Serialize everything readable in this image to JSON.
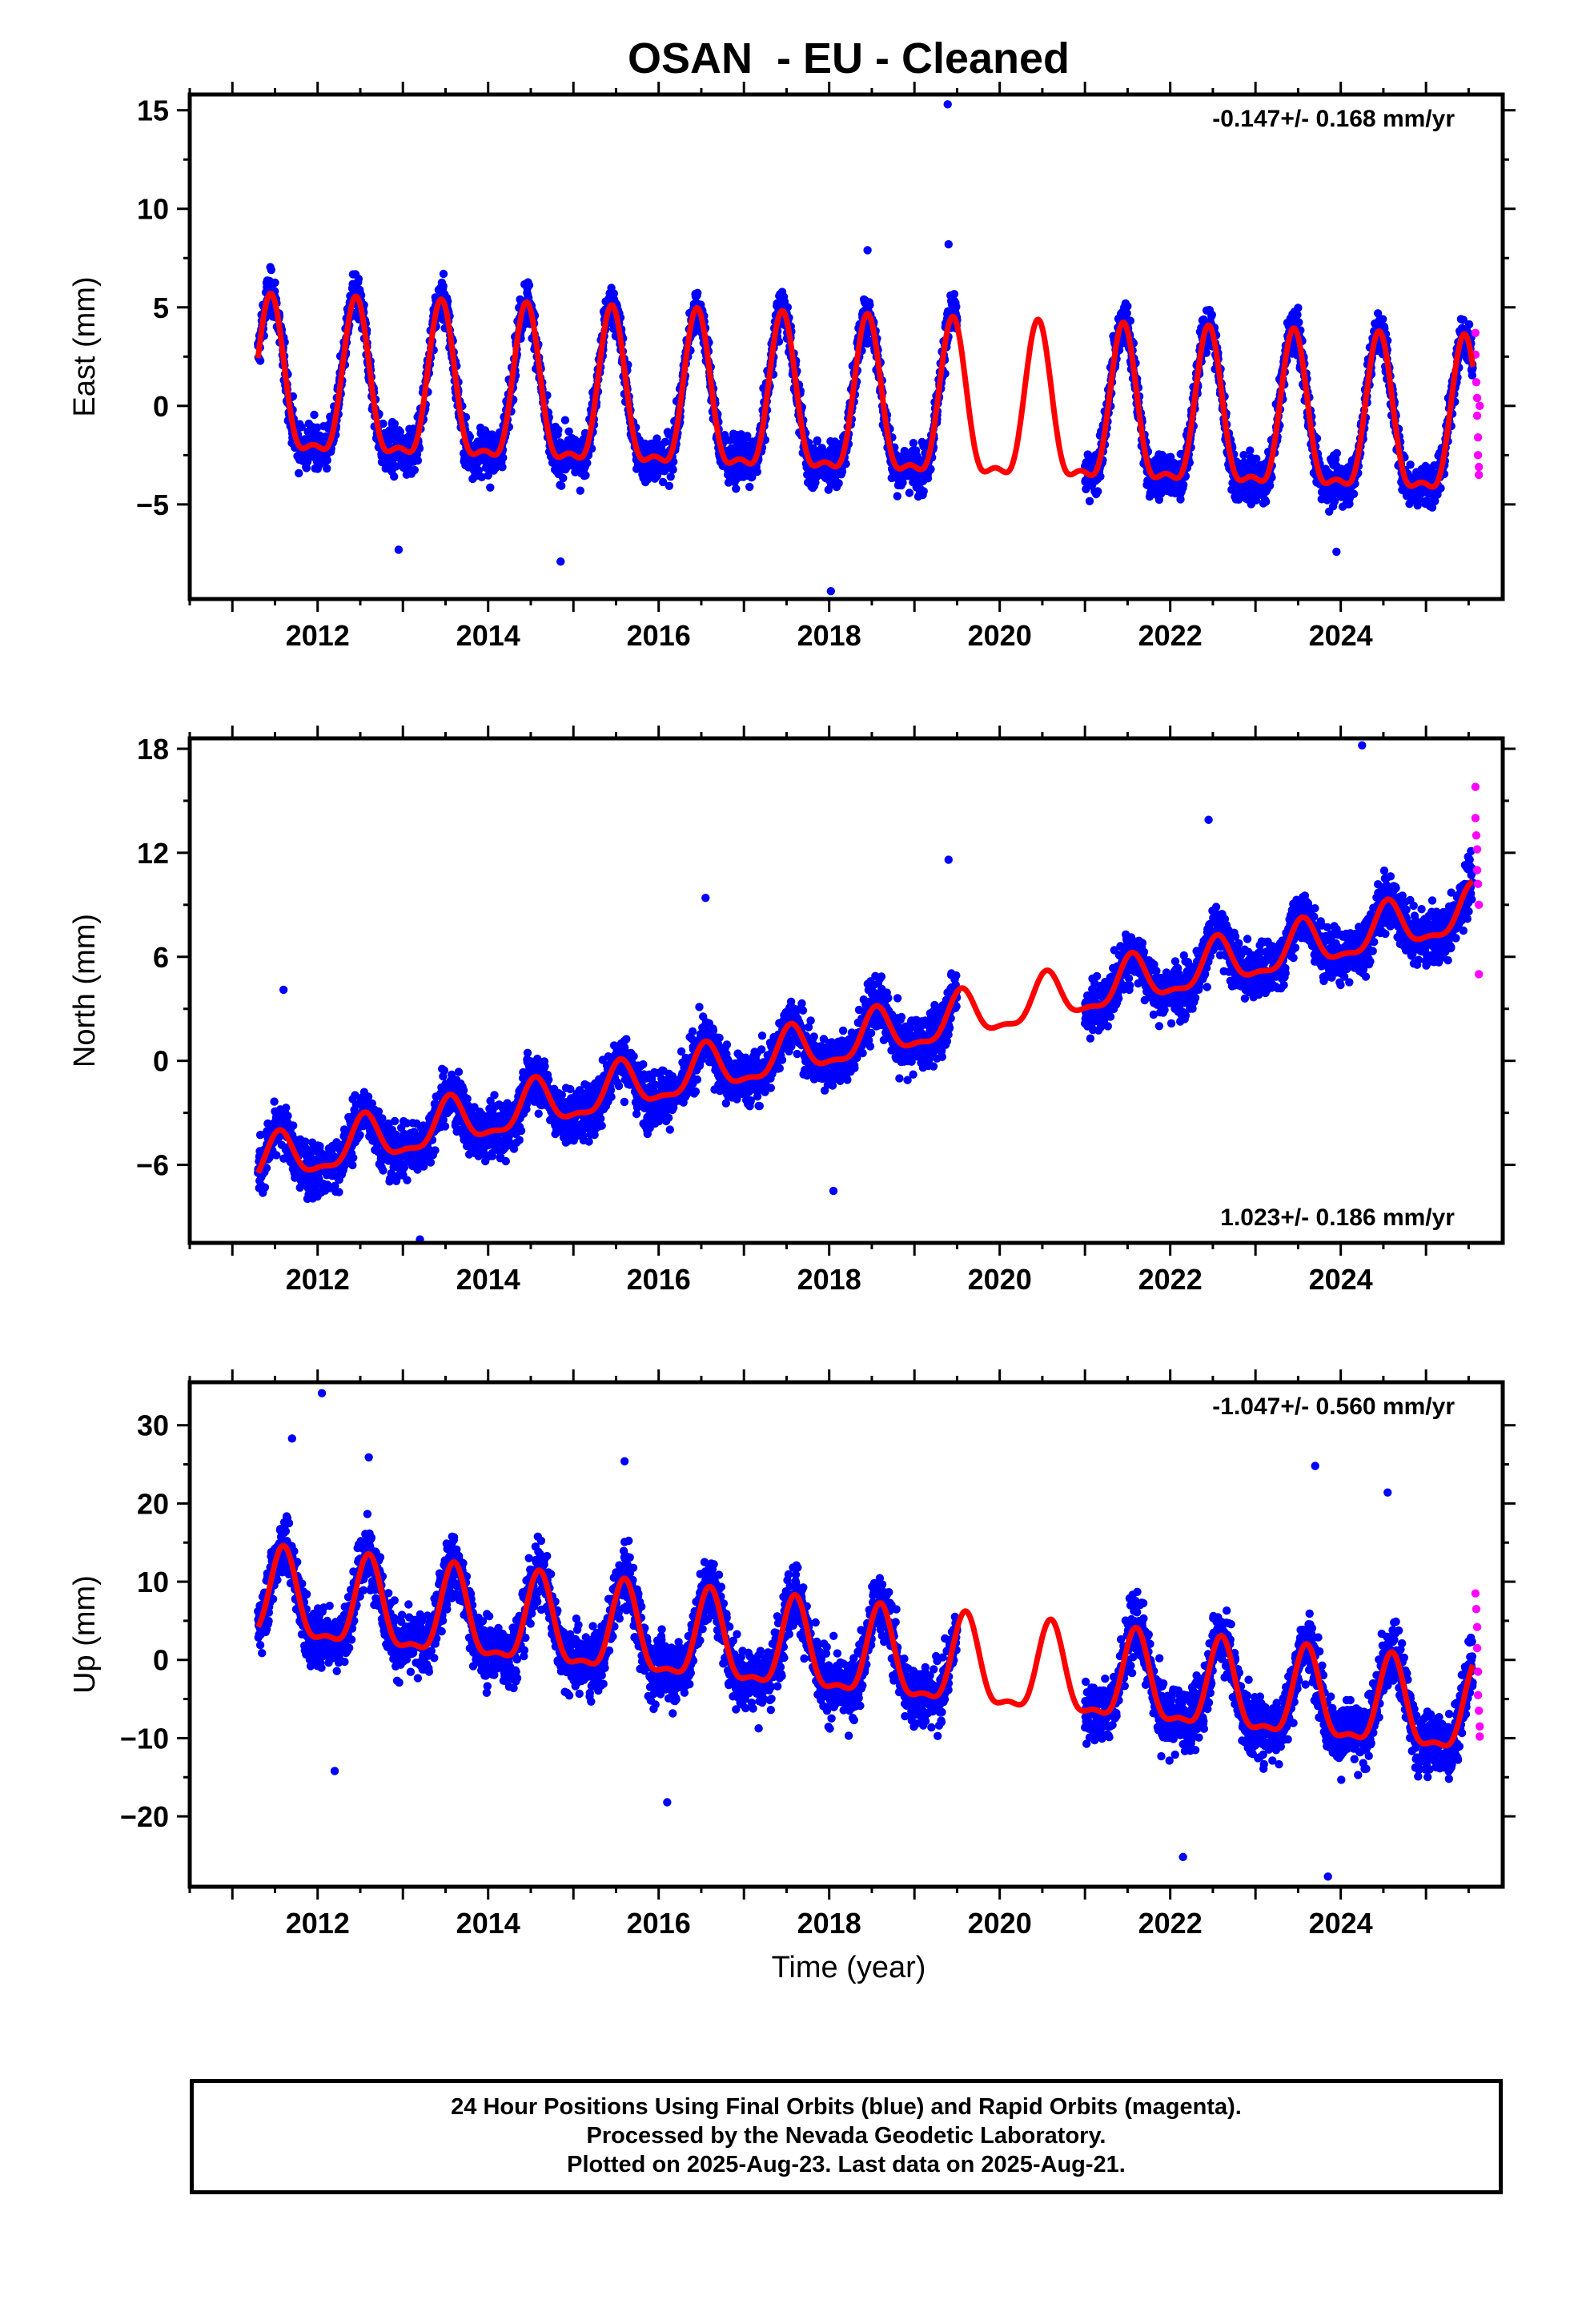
{
  "title": "OSAN  - EU - Cleaned",
  "xlabel": "Time (year)",
  "footer": {
    "line1": "24 Hour Positions Using Final Orbits (blue) and Rapid Orbits (magenta).",
    "line2": "Processed by the Nevada Geodetic Laboratory.",
    "line3": "Plotted on 2025-Aug-23. Last data on 2025-Aug-21."
  },
  "colors": {
    "final_orbits": "#0000ff",
    "rapid_orbits": "#ff00ff",
    "model": "#ff0000",
    "axes": "#000000"
  },
  "chart_data": [
    {
      "type": "scatter",
      "panel": "east",
      "ylabel": "East (mm)",
      "rate_label": "-0.147+/- 0.168 mm/yr",
      "rate_position": "top-right",
      "xlim": [
        2010.5,
        2025.9
      ],
      "ylim": [
        -9.8,
        15.8
      ],
      "x_ticks": [
        2012,
        2014,
        2016,
        2018,
        2020,
        2022,
        2024
      ],
      "y_ticks": [
        -5,
        0,
        5,
        10,
        15
      ],
      "data_span": [
        2011.3,
        2025.55
      ],
      "gap": [
        2019.5,
        2021.0
      ],
      "model": {
        "offset": 0.6,
        "trend": -0.147,
        "amplitude": 3.8,
        "peak_year_fraction": 0.45
      },
      "scatter_sigma": 1.1,
      "rapid_points": [
        [
          2025.58,
          3.7
        ],
        [
          2025.58,
          2.6
        ],
        [
          2025.59,
          1.2
        ],
        [
          2025.6,
          0.4
        ],
        [
          2025.6,
          -0.5
        ],
        [
          2025.61,
          -1.6
        ],
        [
          2025.61,
          -2.5
        ],
        [
          2025.62,
          -3.5
        ],
        [
          2025.62,
          -3.1
        ],
        [
          2025.63,
          0.0
        ]
      ],
      "outliers": [
        [
          2019.39,
          15.3
        ],
        [
          2019.4,
          8.2
        ],
        [
          2018.45,
          7.9
        ],
        [
          2018.02,
          -9.4
        ],
        [
          2014.85,
          -7.9
        ],
        [
          2023.95,
          -7.4
        ],
        [
          2012.95,
          -7.3
        ]
      ]
    },
    {
      "type": "scatter",
      "panel": "north",
      "ylabel": "North (mm)",
      "rate_label": "1.023+/- 0.186 mm/yr",
      "rate_position": "bottom-right",
      "xlim": [
        2010.5,
        2025.9
      ],
      "ylim": [
        -10.5,
        18.6
      ],
      "x_ticks": [
        2012,
        2014,
        2016,
        2018,
        2020,
        2022,
        2024
      ],
      "y_ticks": [
        -6,
        0,
        6,
        12,
        18
      ],
      "data_span": [
        2011.3,
        2025.55
      ],
      "gap": [
        2019.5,
        2021.0
      ],
      "model": {
        "offset": -6.0,
        "trend": 1.023,
        "amplitude": 1.3,
        "peak_year_fraction": 0.55
      },
      "scatter_sigma": 1.5,
      "rapid_points": [
        [
          2025.58,
          15.8
        ],
        [
          2025.58,
          14.0
        ],
        [
          2025.59,
          13.0
        ],
        [
          2025.6,
          12.2
        ],
        [
          2025.6,
          11.0
        ],
        [
          2025.61,
          10.2
        ],
        [
          2025.62,
          9.0
        ],
        [
          2025.62,
          5.0
        ]
      ],
      "outliers": [
        [
          2024.25,
          18.2
        ],
        [
          2022.45,
          13.9
        ],
        [
          2019.4,
          11.6
        ],
        [
          2016.55,
          9.4
        ],
        [
          2011.6,
          4.1
        ],
        [
          2013.2,
          -10.3
        ],
        [
          2018.05,
          -7.5
        ]
      ]
    },
    {
      "type": "scatter",
      "panel": "up",
      "ylabel": "Up (mm)",
      "rate_label": "-1.047+/- 0.560 mm/yr",
      "rate_position": "top-right",
      "xlim": [
        2010.5,
        2025.9
      ],
      "ylim": [
        -29.0,
        35.5
      ],
      "x_ticks": [
        2012,
        2014,
        2016,
        2018,
        2020,
        2022,
        2024
      ],
      "y_ticks": [
        -20,
        -10,
        0,
        10,
        20,
        30
      ],
      "data_span": [
        2011.3,
        2025.55
      ],
      "gap": [
        2019.5,
        2021.0
      ],
      "model": {
        "offset": 7.5,
        "trend": -1.047,
        "amplitude": 5.5,
        "peak_year_fraction": 0.6
      },
      "scatter_sigma": 4.0,
      "rapid_points": [
        [
          2025.58,
          8.5
        ],
        [
          2025.59,
          6.5
        ],
        [
          2025.6,
          4.2
        ],
        [
          2025.6,
          1.5
        ],
        [
          2025.61,
          -1.5
        ],
        [
          2025.61,
          -4.5
        ],
        [
          2025.62,
          -6.5
        ],
        [
          2025.63,
          -8.5
        ],
        [
          2025.63,
          -9.8
        ]
      ],
      "outliers": [
        [
          2012.05,
          34.1
        ],
        [
          2011.7,
          28.3
        ],
        [
          2012.6,
          25.9
        ],
        [
          2015.6,
          25.4
        ],
        [
          2023.7,
          24.8
        ],
        [
          2024.55,
          21.4
        ],
        [
          2022.15,
          -25.2
        ],
        [
          2023.85,
          -27.7
        ],
        [
          2012.2,
          -14.2
        ],
        [
          2016.1,
          -18.2
        ]
      ]
    }
  ]
}
